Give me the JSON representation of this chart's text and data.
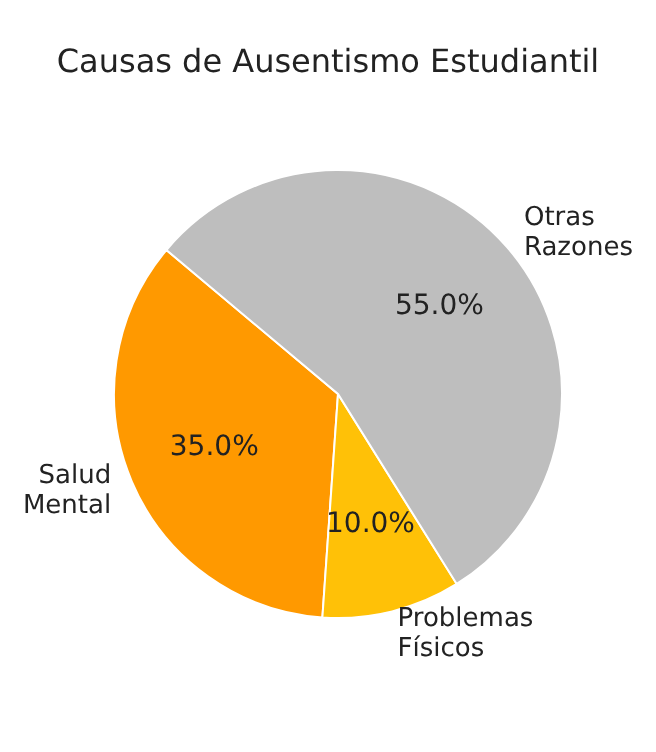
{
  "chart_data": {
    "type": "pie",
    "title": "Causas de Ausentismo Estudiantil",
    "categories": [
      "Salud Mental",
      "Problemas Físicos",
      "Otras Razones"
    ],
    "values": [
      35,
      10,
      55
    ],
    "colors": [
      "#ff9900",
      "#ffc107",
      "#bebebe"
    ],
    "value_labels": [
      "35.0%",
      "10.0%",
      "55.0%"
    ]
  }
}
